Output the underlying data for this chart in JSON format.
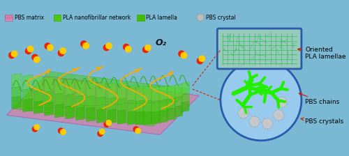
{
  "bg_color": "#7ab8d4",
  "fig_width": 5.0,
  "fig_height": 2.24,
  "legend_items": [
    {
      "label": "PBS matrix",
      "color": "#d490b8"
    },
    {
      "label": "PLA nanofibrillar network",
      "color": "#55cc11"
    },
    {
      "label": "PLA lamella",
      "color": "#44bb00"
    },
    {
      "label": "PBS crystal",
      "color": "#b8b8b8"
    }
  ],
  "o2_label": "O₂",
  "right_labels": [
    "PBS crystals",
    "PBS chains",
    "Oriented\nPLA lamellae"
  ],
  "circle_color": "#2255aa",
  "circle_facecolor": "#99ccee",
  "rect_color": "#2255aa",
  "rect_facecolor": "#aaddbb",
  "main_green": "#44cc11",
  "dark_green": "#22aa00",
  "base_color": "#c888b0",
  "nanofiber_color": "#ffaa00",
  "o2_red": "#ee2200",
  "o2_yellow": "#ffcc00",
  "branch_color": "#22ee00",
  "pbs_crystal_color": "#cccccc",
  "arrow_color": "#cc2200",
  "connect_color": "#cc2200"
}
